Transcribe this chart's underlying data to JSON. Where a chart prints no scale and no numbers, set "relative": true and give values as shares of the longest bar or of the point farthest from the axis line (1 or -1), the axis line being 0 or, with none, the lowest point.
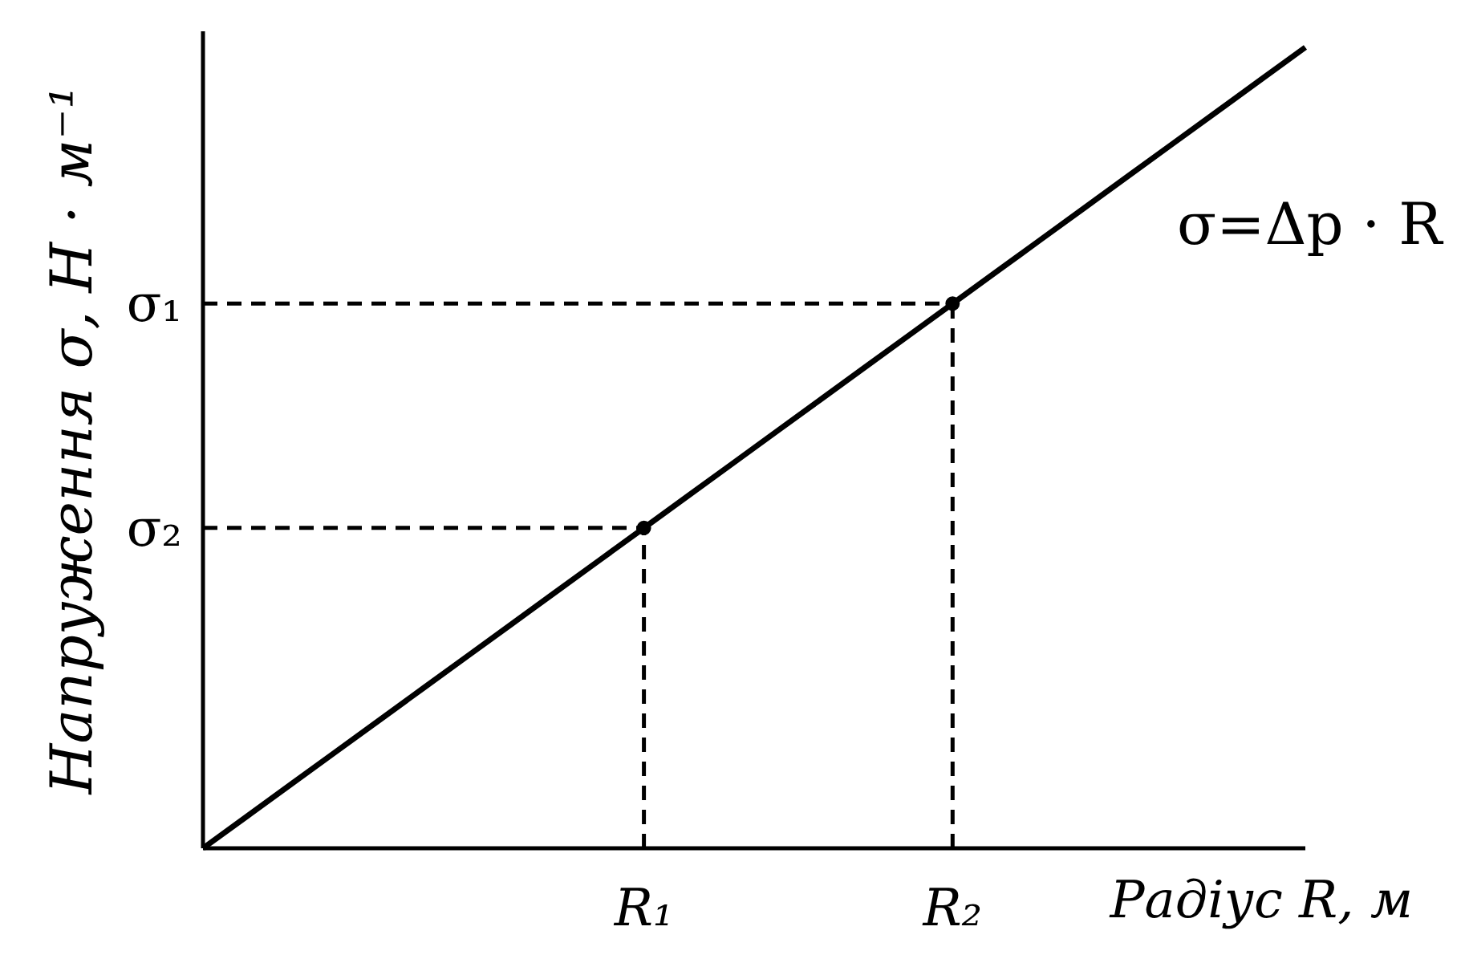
{
  "chart_data": {
    "type": "line",
    "relative": true,
    "xlabel": "Радіус R, м",
    "ylabel": "Напруження σ, Н · м⁻¹",
    "categories": [
      null,
      null,
      null,
      null,
      null,
      null,
      null,
      null,
      null,
      null,
      "R₁",
      null,
      null,
      null,
      null,
      null,
      null,
      "R₂",
      null,
      null,
      null,
      null,
      null,
      null,
      null,
      null
    ],
    "annotations": [
      "σ=Δp · R"
    ],
    "series": [
      {
        "color": "#000000",
        "line_style": "solid",
        "values": [
          0,
          0.04,
          0.08,
          0.12,
          0.16,
          0.2,
          0.24,
          0.28,
          0.32,
          0.36,
          0.4,
          0.44,
          0.48,
          0.52,
          0.56,
          0.6,
          0.64,
          0.68,
          0.72,
          0.76,
          0.8,
          0.84,
          0.88,
          0.92,
          0.96,
          1
        ]
      },
      {
        "name": "σ₂",
        "color": "#000000",
        "line_style": "dashed",
        "values": [
          0.4,
          0.4,
          0.4,
          0.4,
          0.4,
          0.4,
          0.4,
          0.4,
          0.4,
          0.4,
          0.4,
          null,
          null,
          null,
          null,
          null,
          null,
          null,
          null,
          null,
          null,
          null,
          null,
          null,
          null,
          null
        ]
      },
      {
        "name": "σ₁",
        "color": "#000000",
        "line_style": "dashed",
        "values": [
          0.68,
          0.68,
          0.68,
          0.68,
          0.68,
          0.68,
          0.68,
          0.68,
          0.68,
          0.68,
          0.68,
          0.68,
          0.68,
          0.68,
          0.68,
          0.68,
          0.68,
          0.68,
          null,
          null,
          null,
          null,
          null,
          null,
          null,
          null
        ]
      },
      {
        "type": "lollipop",
        "color": "#000000",
        "line_style": "dashed",
        "marker": "circle",
        "values": [
          null,
          null,
          null,
          null,
          null,
          null,
          null,
          null,
          null,
          null,
          0.4,
          null,
          null,
          null,
          null,
          null,
          null,
          0.68,
          null,
          null,
          null,
          null,
          null,
          null,
          null,
          null
        ]
      }
    ]
  }
}
